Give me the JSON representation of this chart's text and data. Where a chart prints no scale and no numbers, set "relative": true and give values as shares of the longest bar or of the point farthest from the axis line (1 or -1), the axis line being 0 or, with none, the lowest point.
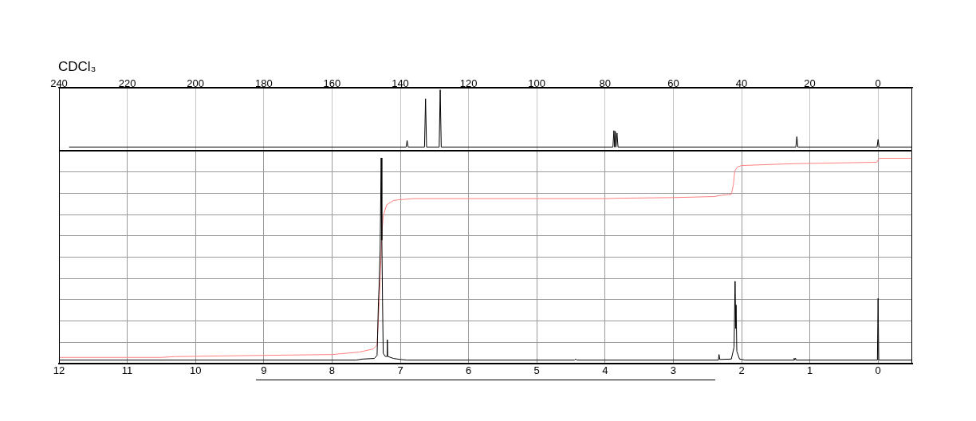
{
  "chart_data": [
    {
      "type": "line",
      "title": "CDCl₃",
      "relative": true,
      "xlim": [
        240,
        -10
      ],
      "xticks": [
        240,
        220,
        200,
        180,
        160,
        140,
        120,
        100,
        80,
        60,
        40,
        20,
        0
      ],
      "grid": "x",
      "tick_labels": "x",
      "marker": "none",
      "series": [
        {
          "color": "#000000",
          "x": [
            237,
            138.3,
            138.0,
            137.7,
            132.9,
            132.6,
            132.3,
            128.6,
            128.3,
            128.0,
            77.7,
            77.4,
            77.2,
            77.0,
            76.8,
            76.5,
            76.2,
            24.1,
            23.8,
            23.5,
            0.3,
            0,
            -0.3,
            -10
          ],
          "values": [
            0.06,
            0.06,
            0.166,
            0.06,
            0.06,
            0.854,
            0.06,
            0.06,
            1,
            0.06,
            0.06,
            0.33,
            0.06,
            0.318,
            0.06,
            0.29,
            0.06,
            0.06,
            0.23,
            0.06,
            0.06,
            0.185,
            0.06,
            0.06
          ]
        }
      ]
    },
    {
      "type": "line",
      "relative": true,
      "xlim": [
        12,
        -0.5
      ],
      "xticks": [
        12,
        11,
        10,
        9,
        8,
        7,
        6,
        5,
        4,
        3,
        2,
        1,
        0
      ],
      "grid": true,
      "tick_labels": "x",
      "marker": "none",
      "series": [
        {
          "color": "#000000",
          "x": [
            12,
            7.65,
            7.55,
            7.38,
            7.34,
            7.32,
            7.31,
            7.295,
            7.28,
            7.27,
            7.26,
            7.25,
            7.22,
            7.195,
            7.19,
            7.185,
            7.1,
            7.0,
            6.9,
            4.45,
            4.43,
            4.41,
            2.34,
            2.33,
            2.32,
            2.15,
            2.11,
            2.095,
            2.085,
            2.08,
            2.07,
            2.03,
            1.95,
            1.24,
            1.23,
            1.22,
            1.21,
            1.2,
            0.01,
            0,
            -0.01,
            -0.5
          ],
          "values": [
            0.017,
            0.017,
            0.022,
            0.025,
            0.04,
            0.3,
            0.38,
            0.55,
            1,
            0.6,
            0.3,
            0.05,
            0.035,
            0.035,
            0.116,
            0.035,
            0.025,
            0.02,
            0.017,
            0.017,
            0.022,
            0.017,
            0.017,
            0.044,
            0.02,
            0.022,
            0.08,
            0.4,
            0.17,
            0.285,
            0.06,
            0.022,
            0.017,
            0.017,
            0.026,
            0.018,
            0.026,
            0.017,
            0.017,
            0.317,
            0.017,
            0.017
          ]
        },
        {
          "color": "#ff8080",
          "x": [
            12,
            10.5,
            10.3,
            9,
            8,
            7.6,
            7.4,
            7.34,
            7.3,
            7.27,
            7.25,
            7.2,
            7.1,
            7,
            6.8,
            4,
            3.8,
            3,
            2.4,
            2.3,
            2.15,
            2.12,
            2.1,
            2.06,
            2,
            1.5,
            1.2,
            0.5,
            0.02,
            -0.02,
            -0.5
          ],
          "values": [
            0.03,
            0.03,
            0.034,
            0.04,
            0.044,
            0.056,
            0.071,
            0.09,
            0.36,
            0.635,
            0.717,
            0.772,
            0.793,
            0.797,
            0.802,
            0.802,
            0.804,
            0.807,
            0.812,
            0.818,
            0.823,
            0.869,
            0.937,
            0.956,
            0.963,
            0.969,
            0.972,
            0.976,
            0.979,
            0.998,
            0.998
          ]
        }
      ]
    }
  ]
}
